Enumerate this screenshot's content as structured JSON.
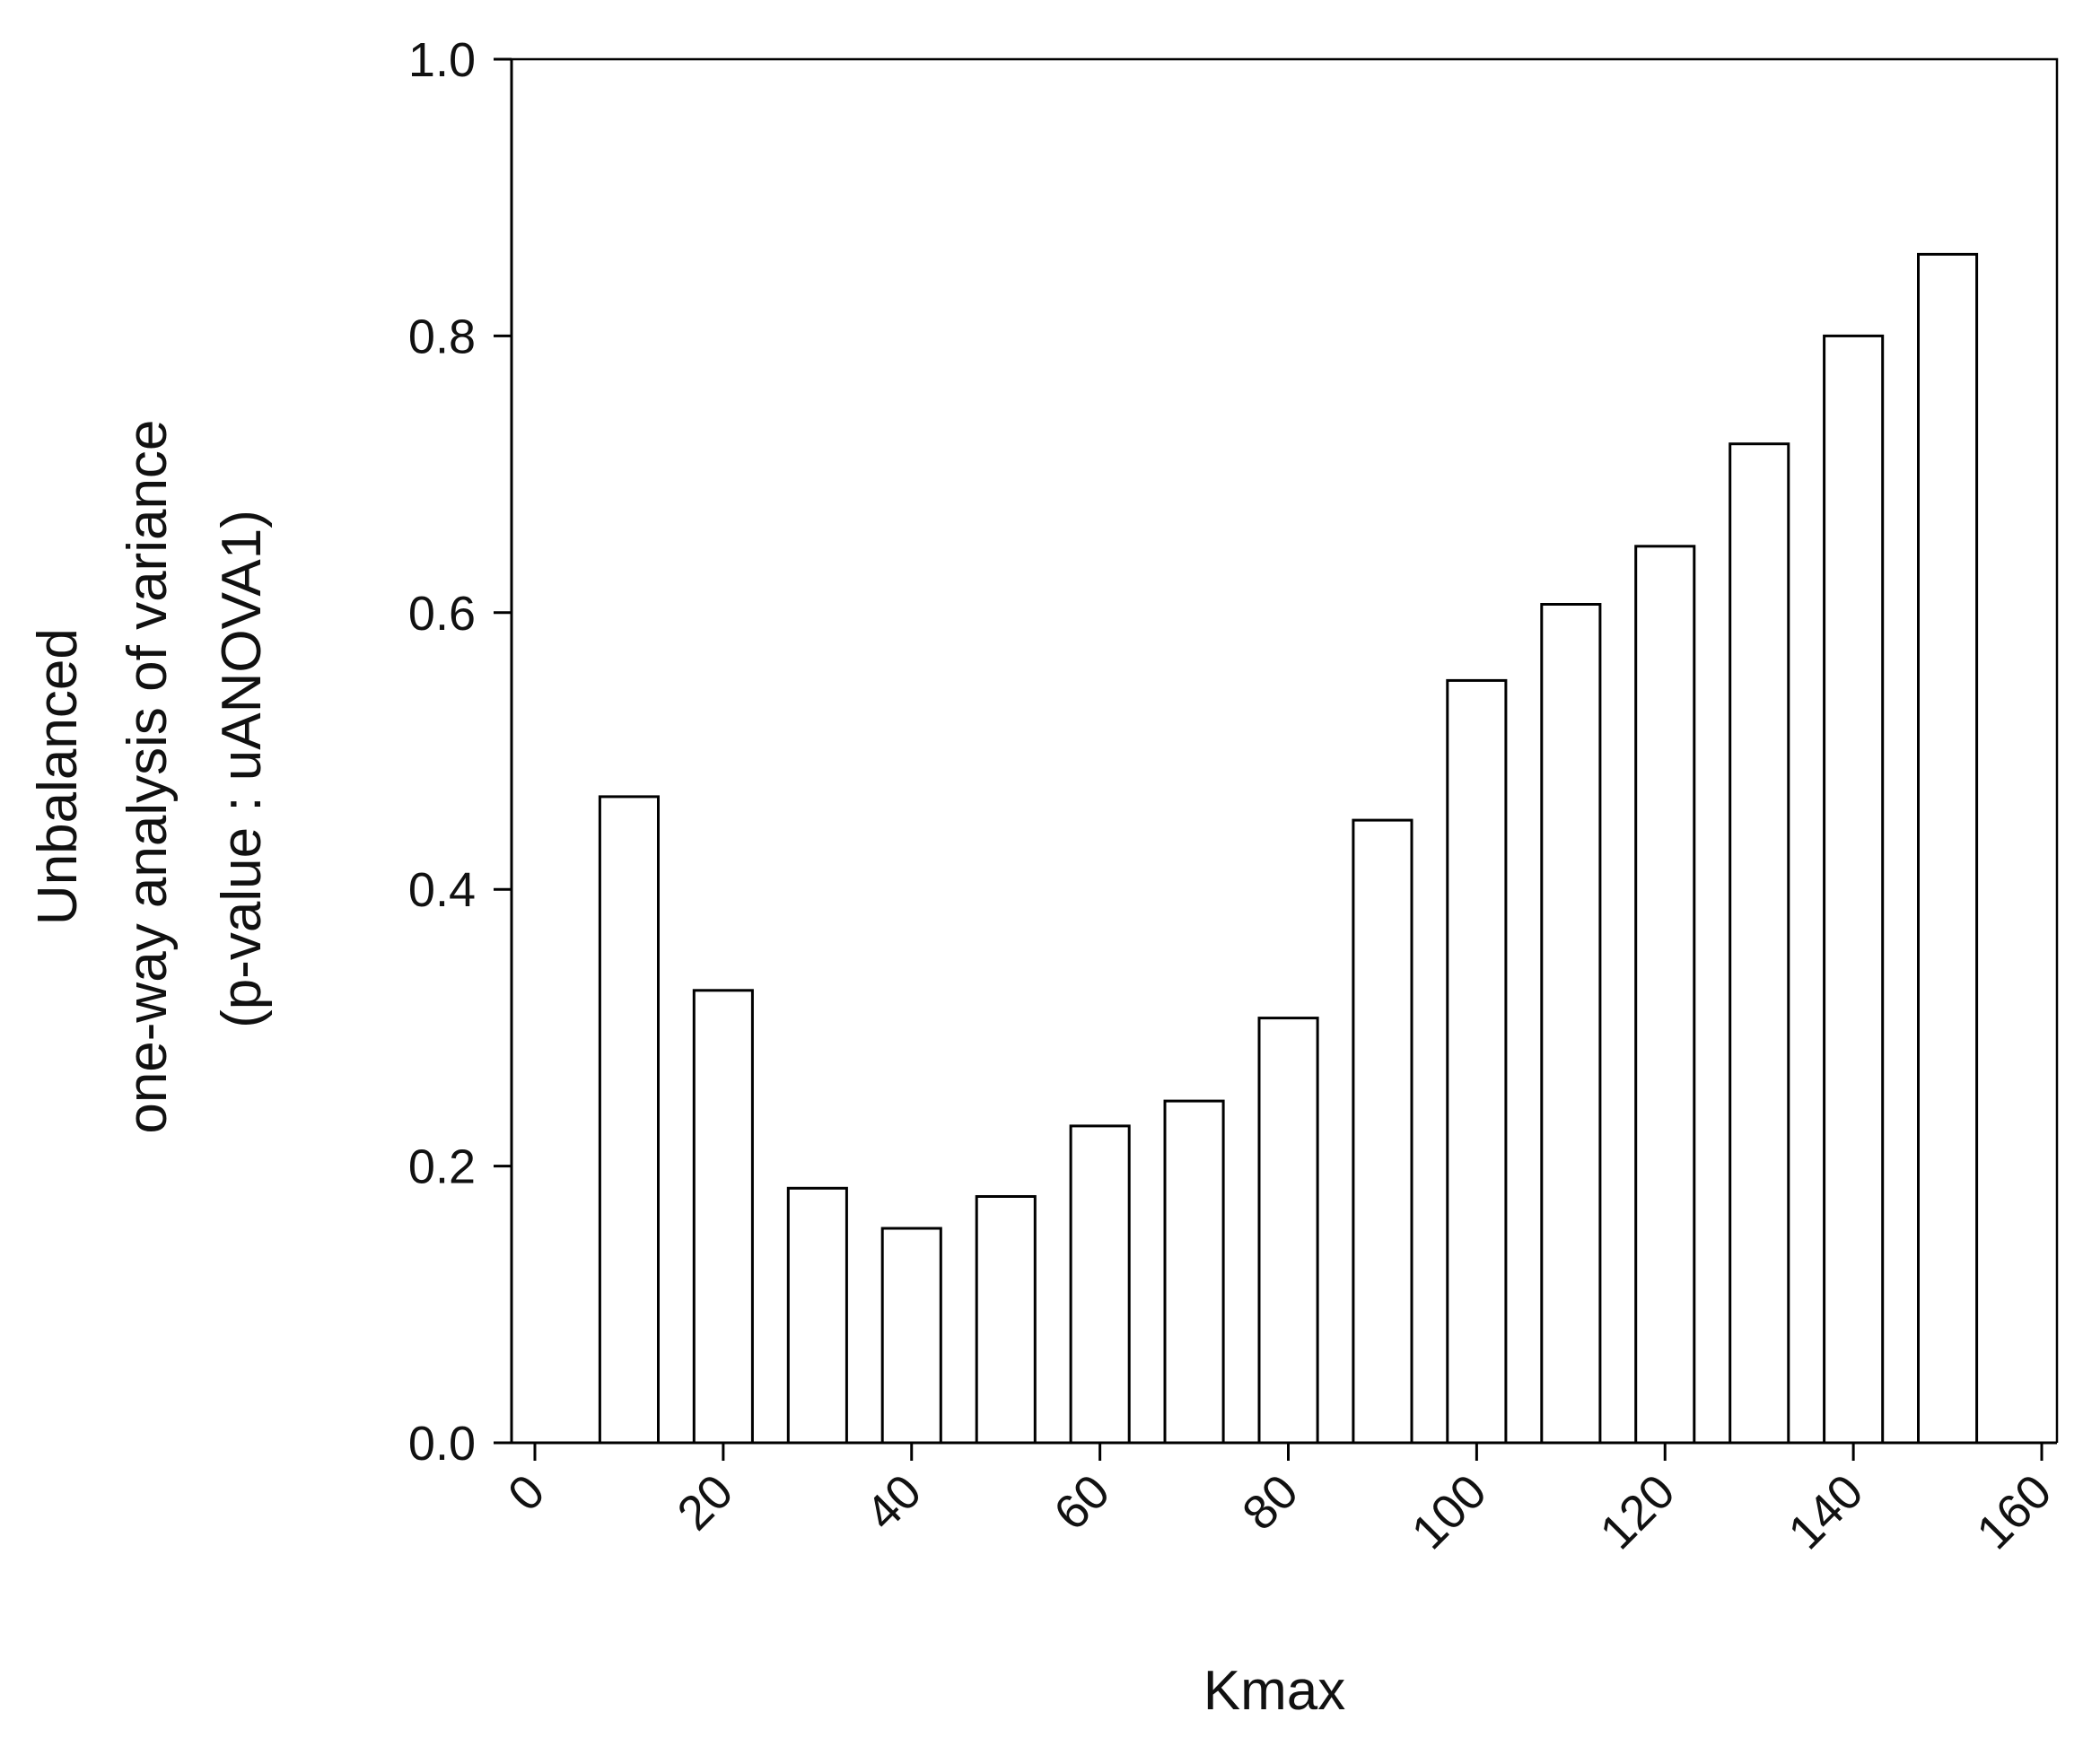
{
  "chart_data": {
    "type": "bar",
    "x": [
      10,
      20,
      30,
      40,
      50,
      60,
      70,
      80,
      90,
      100,
      110,
      120,
      130,
      140,
      150
    ],
    "values": [
      0.467,
      0.327,
      0.184,
      0.155,
      0.178,
      0.229,
      0.247,
      0.307,
      0.45,
      0.551,
      0.606,
      0.648,
      0.722,
      0.8,
      0.859
    ],
    "title": "",
    "xlabel": "Kmax",
    "ylabel_lines": [
      "Unbalanced",
      "one-way analysis of variance",
      "(p-value : uANOVA1)"
    ],
    "xlim": [
      0,
      160
    ],
    "ylim": [
      0,
      1.0
    ],
    "xticks": [
      0,
      20,
      40,
      60,
      80,
      100,
      120,
      140,
      160
    ],
    "xtick_labels": [
      "0",
      "20",
      "40",
      "60",
      "80",
      "100",
      "120",
      "140",
      "160"
    ],
    "yticks": [
      0,
      0.2,
      0.4,
      0.6,
      0.8,
      1.0
    ],
    "ytick_labels": [
      "0.0",
      "0.2",
      "0.4",
      "0.6",
      "0.8",
      "1.0"
    ],
    "grid": false,
    "bar_color": "#ffffff",
    "edge_color": "#000000"
  }
}
